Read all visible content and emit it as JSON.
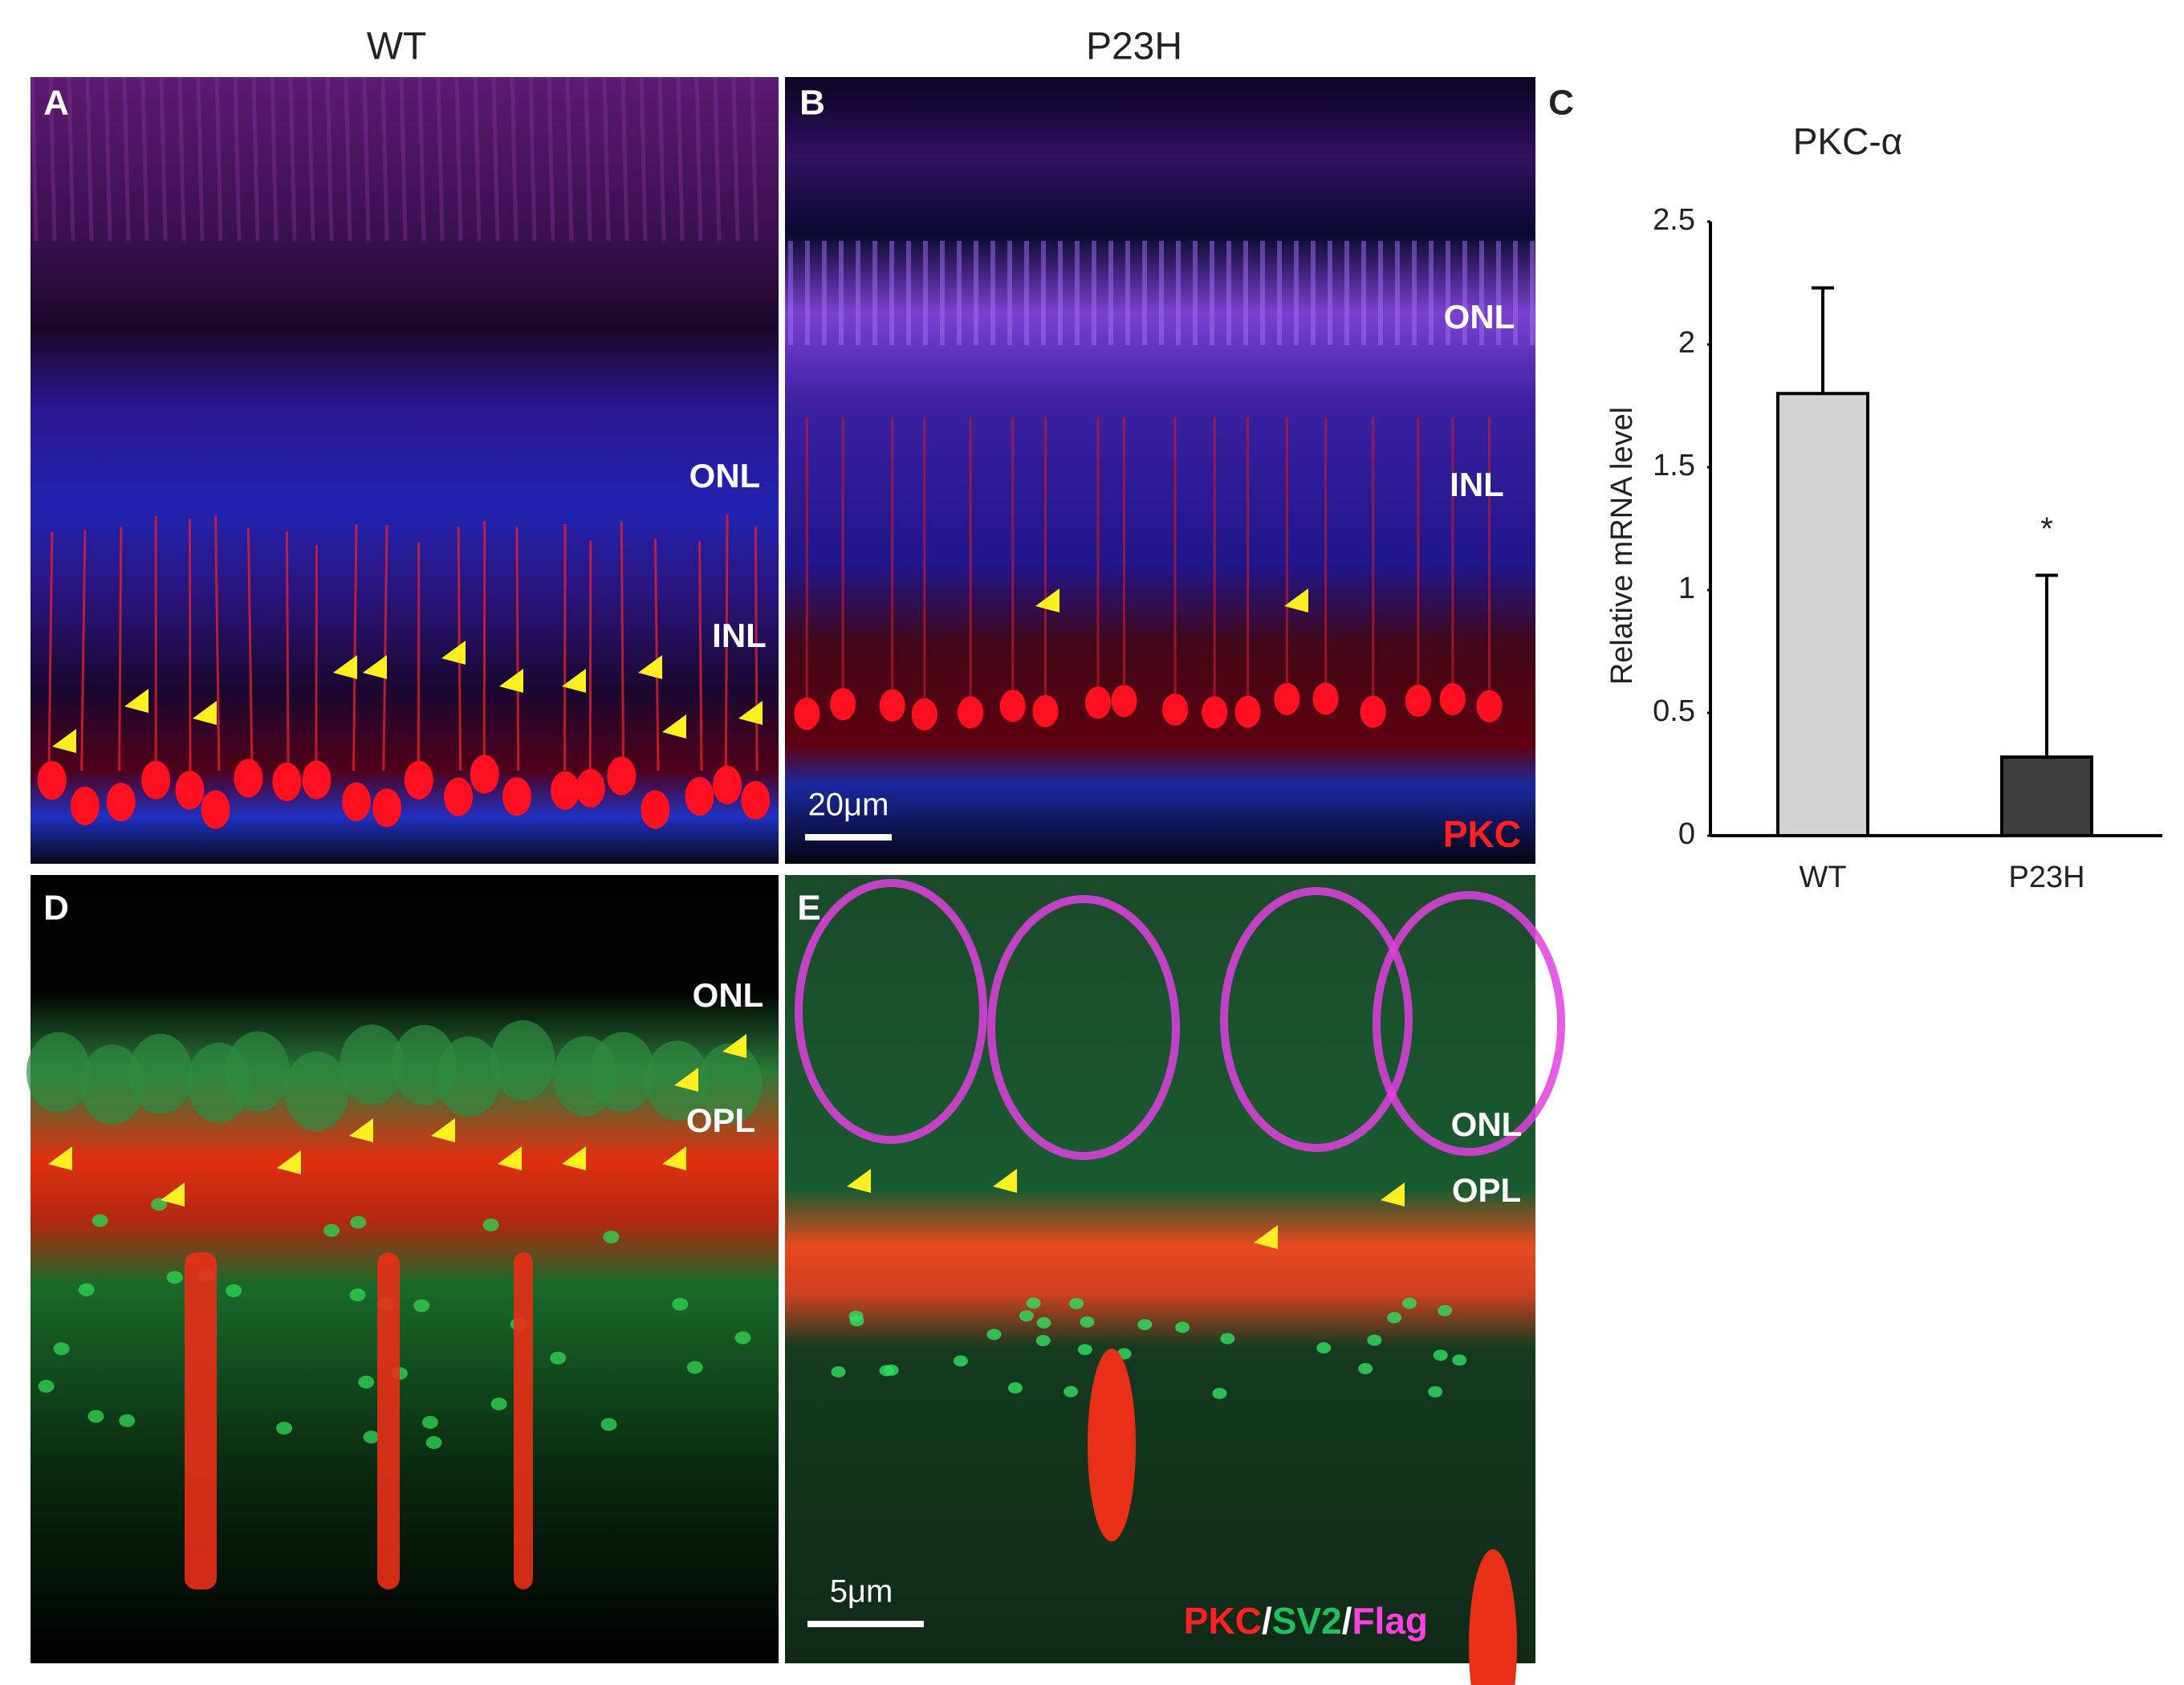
{
  "column_titles": [
    "WT",
    "P23H"
  ],
  "panels": [
    {
      "letter": "A",
      "labels": [
        "ONL",
        "INL"
      ]
    },
    {
      "letter": "B",
      "labels": [
        "ONL",
        "INL"
      ],
      "scale_bar": "20μm",
      "stain": [
        "PKC"
      ]
    },
    {
      "letter": "D",
      "labels": [
        "ONL",
        "OPL"
      ]
    },
    {
      "letter": "E",
      "labels": [
        "ONL",
        "OPL"
      ],
      "scale_bar": "5μm",
      "stain": [
        "PKC",
        "/",
        "SV2",
        "/",
        "Flag"
      ]
    }
  ],
  "chart_data": {
    "type": "bar",
    "panel_letter": "C",
    "title": "PKC-α",
    "y_label": "Relative mRNA level",
    "categories": [
      "WT",
      "P23H"
    ],
    "values": [
      1.8,
      0.32
    ],
    "errors": [
      0.43,
      0.74
    ],
    "colors": [
      "#d3d3d3",
      "#3f3f3f"
    ],
    "annotations": [
      {
        "category": 1,
        "text": "*"
      }
    ],
    "ylim": [
      0,
      2.5
    ],
    "yticks": [
      0,
      0.5,
      1,
      1.5,
      2,
      2.5
    ]
  }
}
